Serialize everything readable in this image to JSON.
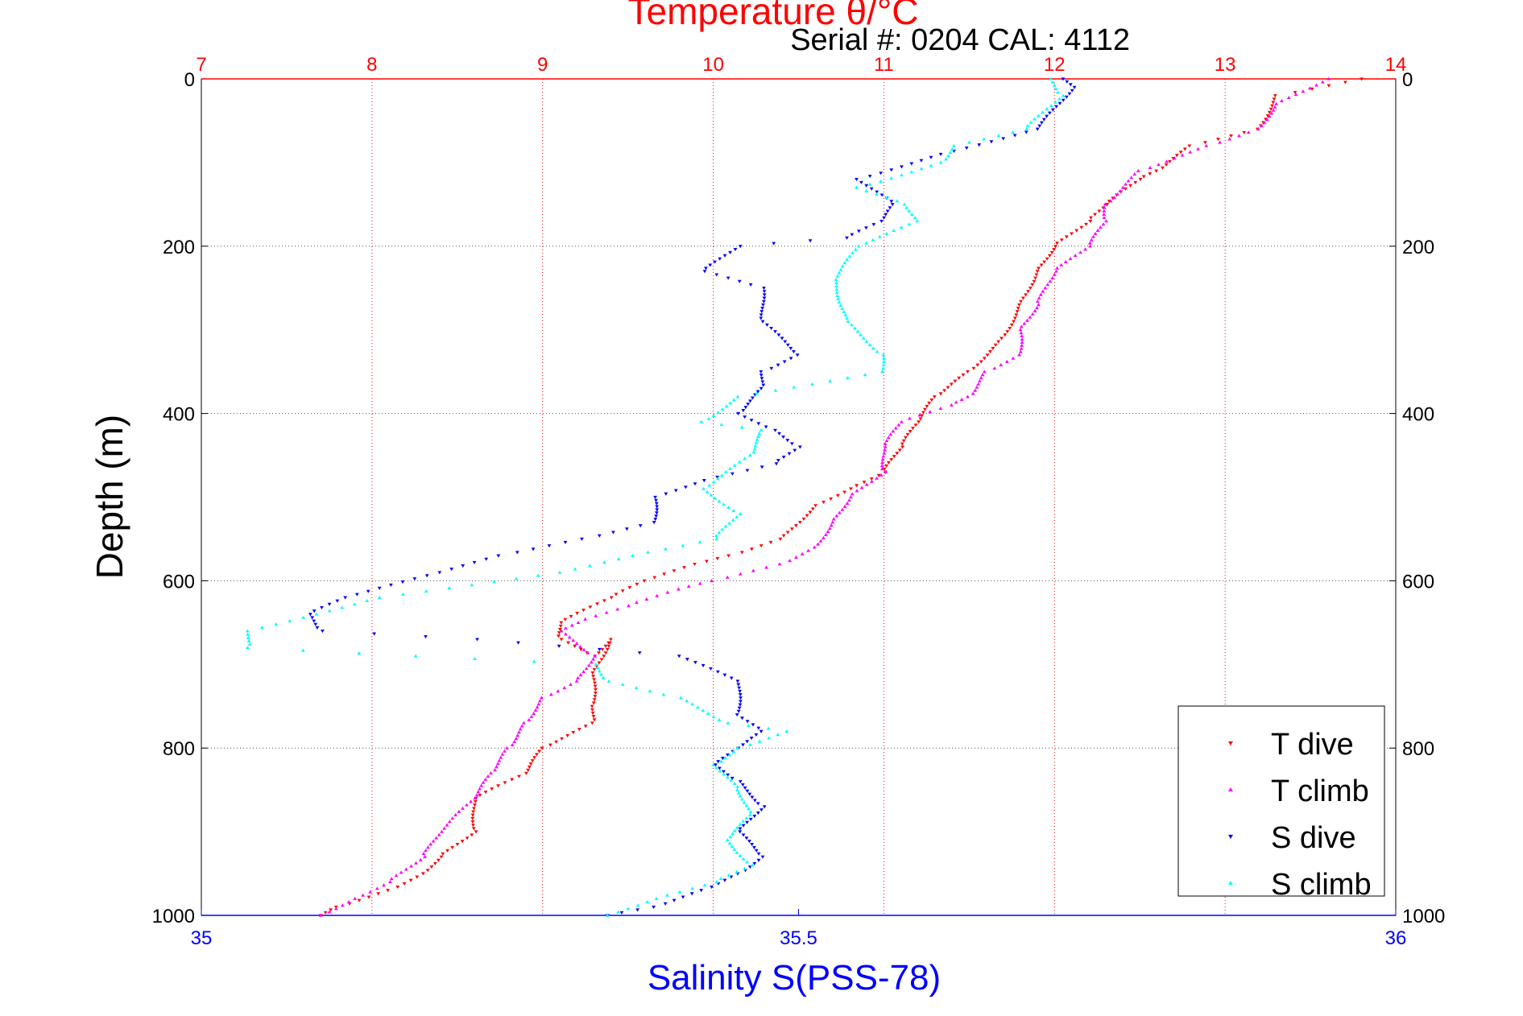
{
  "chart_data": {
    "type": "scatter",
    "title": "Temperature θ/°C",
    "subtitle": "Serial #: 0204  CAL: 4112",
    "ylabel": "Depth (m)",
    "xlabel_bottom": "Salinity S(PSS-78)",
    "ylim": [
      1000,
      0
    ],
    "yticks": [
      "0",
      "200",
      "400",
      "600",
      "800",
      "1000"
    ],
    "x_top": {
      "label": "Temperature θ/°C",
      "range": [
        7,
        14
      ],
      "ticks": [
        "7",
        "8",
        "9",
        "10",
        "11",
        "12",
        "13",
        "14"
      ],
      "color": "#ff0000"
    },
    "x_bottom": {
      "label": "Salinity S(PSS-78)",
      "range": [
        35,
        36
      ],
      "ticks": [
        "35",
        "35.5",
        "36"
      ],
      "color": "#0000ff"
    },
    "grid": true,
    "legend_position": "bottom-right",
    "series": [
      {
        "name": "T dive",
        "axis": "top",
        "color": "#ff0000",
        "marker": "triangle-down",
        "points": [
          [
            13.8,
            0
          ],
          [
            13.3,
            20
          ],
          [
            13.2,
            60
          ],
          [
            12.8,
            80
          ],
          [
            12.6,
            110
          ],
          [
            12.5,
            120
          ],
          [
            12.3,
            150
          ],
          [
            12.2,
            170
          ],
          [
            12.0,
            200
          ],
          [
            11.9,
            230
          ],
          [
            11.8,
            270
          ],
          [
            11.7,
            310
          ],
          [
            11.5,
            350
          ],
          [
            11.3,
            380
          ],
          [
            11.2,
            410
          ],
          [
            11.1,
            440
          ],
          [
            11.0,
            470
          ],
          [
            10.8,
            490
          ],
          [
            10.6,
            510
          ],
          [
            10.4,
            550
          ],
          [
            10.1,
            570
          ],
          [
            9.9,
            580
          ],
          [
            9.6,
            600
          ],
          [
            9.4,
            620
          ],
          [
            9.1,
            650
          ],
          [
            9.1,
            670
          ],
          [
            9.3,
            690
          ],
          [
            9.4,
            670
          ],
          [
            9.3,
            710
          ],
          [
            9.3,
            750
          ],
          [
            9.3,
            770
          ],
          [
            9.0,
            800
          ],
          [
            8.9,
            830
          ],
          [
            8.6,
            860
          ],
          [
            8.6,
            900
          ],
          [
            8.4,
            930
          ],
          [
            8.3,
            950
          ],
          [
            8.1,
            970
          ],
          [
            7.8,
            990
          ],
          [
            7.7,
            1000
          ]
        ]
      },
      {
        "name": "T climb",
        "axis": "top",
        "color": "#ff00ff",
        "marker": "triangle-up",
        "points": [
          [
            13.6,
            0
          ],
          [
            13.3,
            30
          ],
          [
            13.2,
            60
          ],
          [
            12.9,
            80
          ],
          [
            12.5,
            110
          ],
          [
            12.3,
            150
          ],
          [
            12.3,
            170
          ],
          [
            12.2,
            200
          ],
          [
            12.0,
            230
          ],
          [
            11.9,
            270
          ],
          [
            11.8,
            300
          ],
          [
            11.8,
            330
          ],
          [
            11.6,
            350
          ],
          [
            11.5,
            380
          ],
          [
            11.4,
            390
          ],
          [
            11.1,
            410
          ],
          [
            11.0,
            440
          ],
          [
            11.0,
            470
          ],
          [
            10.8,
            500
          ],
          [
            10.7,
            530
          ],
          [
            10.6,
            560
          ],
          [
            10.4,
            580
          ],
          [
            10.0,
            600
          ],
          [
            9.8,
            610
          ],
          [
            9.5,
            630
          ],
          [
            9.2,
            650
          ],
          [
            9.1,
            660
          ],
          [
            9.3,
            690
          ],
          [
            9.2,
            720
          ],
          [
            9.0,
            740
          ],
          [
            8.9,
            770
          ],
          [
            8.8,
            800
          ],
          [
            8.7,
            830
          ],
          [
            8.6,
            860
          ],
          [
            8.4,
            900
          ],
          [
            8.3,
            930
          ],
          [
            8.1,
            960
          ],
          [
            7.9,
            980
          ],
          [
            7.7,
            1000
          ]
        ]
      },
      {
        "name": "S dive",
        "axis": "bottom",
        "color": "#0000ff",
        "marker": "triangle-down",
        "points": [
          [
            35.72,
            0
          ],
          [
            35.73,
            10
          ],
          [
            35.7,
            60
          ],
          [
            35.62,
            90
          ],
          [
            35.55,
            120
          ],
          [
            35.58,
            150
          ],
          [
            35.57,
            170
          ],
          [
            35.54,
            190
          ],
          [
            35.45,
            200
          ],
          [
            35.42,
            230
          ],
          [
            35.47,
            250
          ],
          [
            35.47,
            290
          ],
          [
            35.5,
            330
          ],
          [
            35.47,
            350
          ],
          [
            35.47,
            370
          ],
          [
            35.45,
            400
          ],
          [
            35.48,
            420
          ],
          [
            35.5,
            440
          ],
          [
            35.48,
            460
          ],
          [
            35.42,
            480
          ],
          [
            35.38,
            500
          ],
          [
            35.38,
            530
          ],
          [
            35.32,
            550
          ],
          [
            35.25,
            570
          ],
          [
            35.2,
            590
          ],
          [
            35.12,
            620
          ],
          [
            35.09,
            640
          ],
          [
            35.1,
            660
          ],
          [
            35.23,
            670
          ],
          [
            35.4,
            690
          ],
          [
            35.45,
            720
          ],
          [
            35.45,
            760
          ],
          [
            35.47,
            780
          ],
          [
            35.45,
            800
          ],
          [
            35.43,
            820
          ],
          [
            35.45,
            840
          ],
          [
            35.47,
            870
          ],
          [
            35.45,
            900
          ],
          [
            35.47,
            930
          ],
          [
            35.45,
            950
          ],
          [
            35.42,
            970
          ],
          [
            35.38,
            990
          ],
          [
            35.34,
            1000
          ]
        ]
      },
      {
        "name": "S climb",
        "axis": "bottom",
        "color": "#00ffff",
        "marker": "triangle-up",
        "points": [
          [
            35.71,
            0
          ],
          [
            35.72,
            20
          ],
          [
            35.69,
            60
          ],
          [
            35.63,
            80
          ],
          [
            35.62,
            100
          ],
          [
            35.55,
            130
          ],
          [
            35.59,
            150
          ],
          [
            35.6,
            170
          ],
          [
            35.55,
            200
          ],
          [
            35.53,
            240
          ],
          [
            35.54,
            290
          ],
          [
            35.57,
            330
          ],
          [
            35.57,
            350
          ],
          [
            35.45,
            380
          ],
          [
            35.42,
            410
          ],
          [
            35.47,
            420
          ],
          [
            35.46,
            450
          ],
          [
            35.42,
            490
          ],
          [
            35.45,
            520
          ],
          [
            35.43,
            550
          ],
          [
            35.36,
            570
          ],
          [
            35.3,
            590
          ],
          [
            35.15,
            620
          ],
          [
            35.04,
            660
          ],
          [
            35.04,
            680
          ],
          [
            35.18,
            690
          ],
          [
            35.33,
            700
          ],
          [
            35.34,
            720
          ],
          [
            35.4,
            740
          ],
          [
            35.44,
            770
          ],
          [
            35.49,
            780
          ],
          [
            35.45,
            800
          ],
          [
            35.43,
            820
          ],
          [
            35.45,
            850
          ],
          [
            35.46,
            880
          ],
          [
            35.44,
            910
          ],
          [
            35.46,
            940
          ],
          [
            35.43,
            960
          ],
          [
            35.38,
            980
          ],
          [
            35.34,
            1000
          ]
        ]
      }
    ]
  }
}
